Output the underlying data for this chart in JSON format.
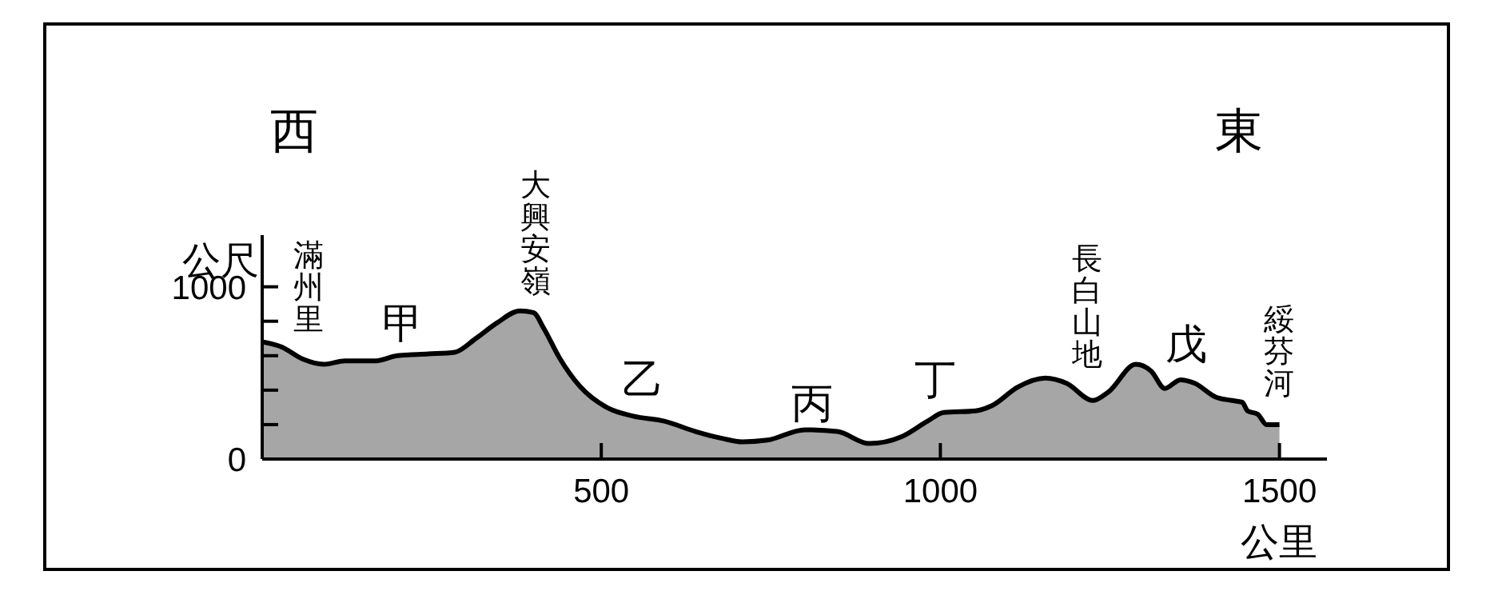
{
  "chart_data": {
    "type": "area",
    "xlabel": "公里",
    "ylabel": "公尺",
    "color": "#a6a6a6",
    "x": [
      0,
      29,
      60,
      91,
      122,
      168,
      199,
      245,
      284,
      315,
      346,
      380,
      400,
      415,
      438,
      469,
      508,
      546,
      593,
      639,
      678,
      708,
      745,
      800,
      848,
      895,
      943,
      981,
      1005,
      1052,
      1076,
      1115,
      1155,
      1186,
      1225,
      1248,
      1288,
      1311,
      1331,
      1354,
      1375,
      1406,
      1430,
      1445,
      1453,
      1468,
      1481,
      1500
    ],
    "values": [
      680,
      650,
      580,
      550,
      570,
      570,
      600,
      610,
      620,
      700,
      790,
      860,
      850,
      760,
      590,
      420,
      300,
      250,
      220,
      160,
      120,
      100,
      110,
      170,
      160,
      90,
      130,
      220,
      270,
      280,
      310,
      420,
      470,
      440,
      340,
      390,
      550,
      510,
      410,
      460,
      440,
      360,
      340,
      330,
      280,
      260,
      200,
      200
    ],
    "xlim": [
      0,
      1570
    ],
    "ylim": [
      0,
      1300
    ],
    "xticks": [
      500,
      1000,
      1500
    ],
    "yticks": [
      0,
      {
        "value": 200,
        "label": null
      },
      {
        "value": 400,
        "label": null
      },
      {
        "value": 600,
        "label": null
      },
      {
        "value": 800,
        "label": null
      },
      1000
    ],
    "grid": false,
    "legend": false,
    "annotations": [
      "西",
      "東",
      "滿州里",
      "甲",
      "大興安嶺",
      "乙",
      "丙",
      "丁",
      "長白山地",
      "戊",
      "綏芬河"
    ]
  }
}
